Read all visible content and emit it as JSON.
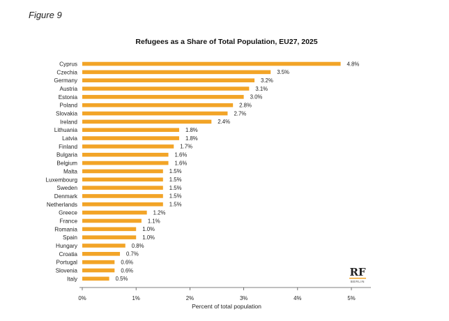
{
  "figure_label": "Figure 9",
  "logo": {
    "mark": "RF",
    "sub": "BERLIN",
    "accent_color": "#f2a427"
  },
  "chart_data": {
    "type": "bar",
    "orientation": "horizontal",
    "title": "Refugees as a Share of Total Population, EU27, 2025",
    "xlabel": "Percent of total population",
    "ylabel": "",
    "xlim": [
      0,
      5
    ],
    "xticks": [
      "0%",
      "1%",
      "2%",
      "3%",
      "4%",
      "5%"
    ],
    "bar_color": "#f2a427",
    "grid": false,
    "categories": [
      "Cyprus",
      "Czechia",
      "Germany",
      "Austria",
      "Estonia",
      "Poland",
      "Slovakia",
      "Ireland",
      "Lithuania",
      "Latvia",
      "Finland",
      "Bulgaria",
      "Belgium",
      "Malta",
      "Luxembourg",
      "Sweden",
      "Denmark",
      "Netherlands",
      "Greece",
      "France",
      "Romania",
      "Spain",
      "Hungary",
      "Croatia",
      "Portugal",
      "Slovenia",
      "Italy"
    ],
    "values": [
      4.8,
      3.5,
      3.2,
      3.1,
      3.0,
      2.8,
      2.7,
      2.4,
      1.8,
      1.8,
      1.7,
      1.6,
      1.6,
      1.5,
      1.5,
      1.5,
      1.5,
      1.5,
      1.2,
      1.1,
      1.0,
      1.0,
      0.8,
      0.7,
      0.6,
      0.6,
      0.5
    ],
    "value_labels": [
      "4.8%",
      "3.5%",
      "3.2%",
      "3.1%",
      "3.0%",
      "2.8%",
      "2.7%",
      "2.4%",
      "1.8%",
      "1.8%",
      "1.7%",
      "1.6%",
      "1.6%",
      "1.5%",
      "1.5%",
      "1.5%",
      "1.5%",
      "1.5%",
      "1.2%",
      "1.1%",
      "1.0%",
      "1.0%",
      "0.8%",
      "0.7%",
      "0.6%",
      "0.6%",
      "0.5%"
    ]
  }
}
